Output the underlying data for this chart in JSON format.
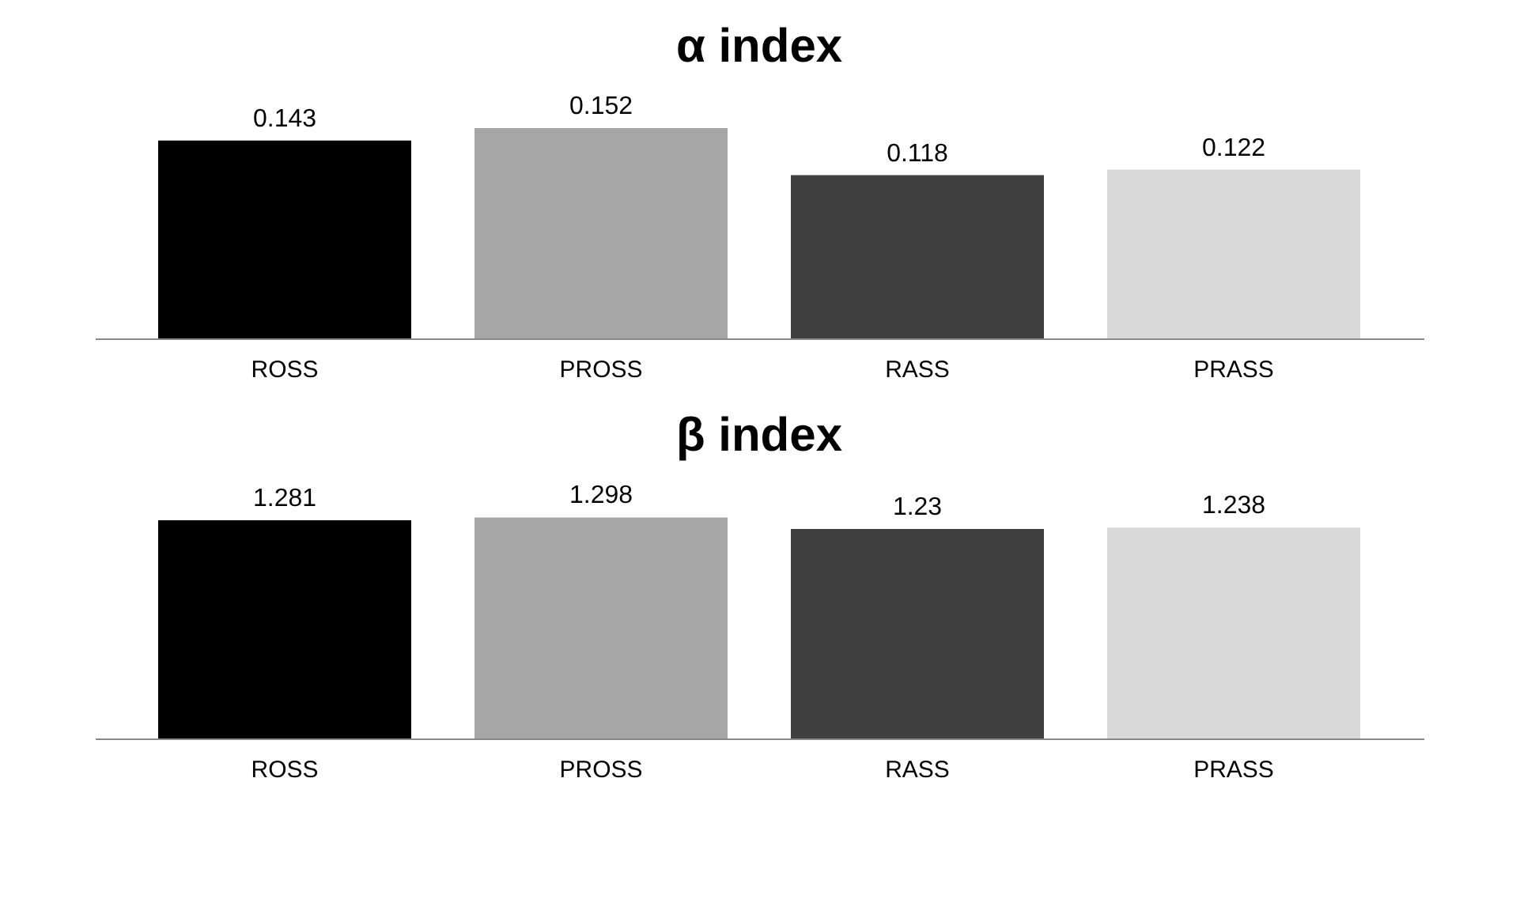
{
  "chart_data": [
    {
      "type": "bar",
      "title": "α index",
      "categories": [
        "ROSS",
        "PROSS",
        "RASS",
        "PRASS"
      ],
      "values": [
        0.143,
        0.152,
        0.118,
        0.122
      ],
      "colors": [
        "#000000",
        "#a6a6a6",
        "#404040",
        "#d9d9d9"
      ],
      "data_labels": true,
      "tick_labels": "x",
      "grid": false,
      "legend": false
    },
    {
      "type": "bar",
      "title": "β index",
      "categories": [
        "ROSS",
        "PROSS",
        "RASS",
        "PRASS"
      ],
      "values": [
        1.281,
        1.298,
        1.23,
        1.238
      ],
      "colors": [
        "#000000",
        "#a6a6a6",
        "#404040",
        "#d9d9d9"
      ],
      "data_labels": true,
      "tick_labels": "x",
      "grid": false,
      "legend": false
    }
  ]
}
